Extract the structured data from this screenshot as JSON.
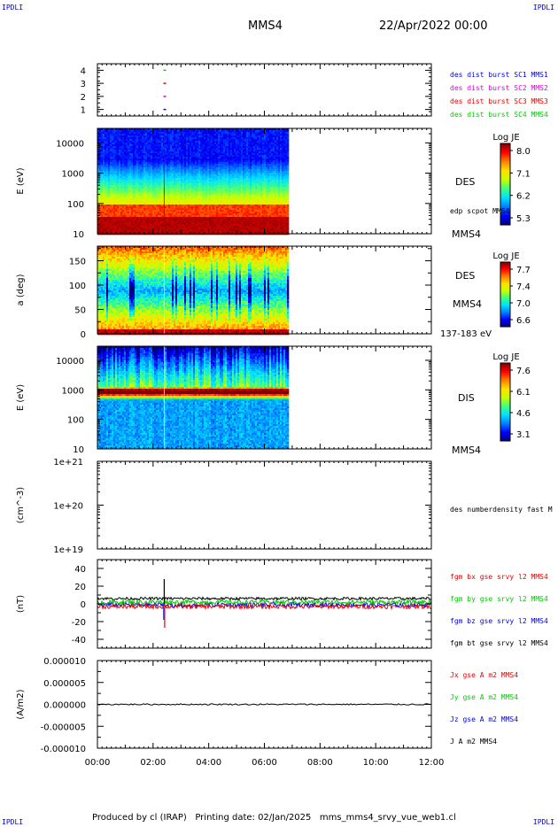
{
  "header": {
    "corner_left": "IPDLI",
    "corner_right": "IPDLI",
    "title": "MMS4",
    "date": "22/Apr/2022 00:00"
  },
  "footer": {
    "credit": "Produced by cl (IRAP)   Printing date: 02/Jan/2025   mms_mms4_srvy_vue_web1.cl",
    "corner_left": "IPDLI",
    "corner_right": "IPDLI"
  },
  "colors": {
    "red": "#ee0000",
    "green": "#00cc00",
    "blue": "#0000ee",
    "magenta": "#dd00dd",
    "black": "#000000",
    "cb_stops": [
      "#00007a",
      "#0000ff",
      "#0080ff",
      "#00e0ff",
      "#40ff80",
      "#c8ff00",
      "#ffe000",
      "#ff8000",
      "#ff0000",
      "#800000"
    ]
  },
  "chart_data": [
    {
      "type": "scatter",
      "name": "burst-panel",
      "ytick_labels": [
        "4",
        "3",
        "2",
        "1"
      ],
      "ylim": [
        0.5,
        4.5
      ],
      "legend": [
        {
          "label": "des dist burst SC1 MMS1",
          "color": "#0000ee"
        },
        {
          "label": "des dist burst SC2 MMS2",
          "color": "#dd00dd"
        },
        {
          "label": "des dist burst SC3 MMS3",
          "color": "#ee0000"
        },
        {
          "label": "des dist burst SC4 MMS4",
          "color": "#00cc00"
        }
      ],
      "points": [
        {
          "x": 2.42,
          "y": 4,
          "color": "#00cc00"
        },
        {
          "x": 2.42,
          "y": 3,
          "color": "#ee0000"
        },
        {
          "x": 2.42,
          "y": 2,
          "color": "#dd00dd"
        },
        {
          "x": 2.42,
          "y": 1,
          "color": "#0000ee"
        }
      ]
    },
    {
      "type": "heatmap",
      "name": "des-energy",
      "ylabel": "E (eV)",
      "yscale": "log",
      "ylim": [
        10,
        30000
      ],
      "ytick_labels": [
        "10000",
        "1000",
        "100",
        "10"
      ],
      "data_end_hour": 6.85,
      "side_labels": [
        "DES",
        "edp scpot MMS4",
        "MMS4"
      ],
      "colorbar": {
        "title": "Log JE",
        "ticks": [
          "8.0",
          "7.1",
          "6.2",
          "5.3"
        ]
      }
    },
    {
      "type": "heatmap",
      "name": "des-pitch",
      "ylabel": "a (deg)",
      "ylim": [
        0,
        180
      ],
      "ytick_labels": [
        "150",
        "100",
        "50",
        "0"
      ],
      "data_end_hour": 6.85,
      "side_labels": [
        "DES",
        "MMS4",
        "137-183 eV"
      ],
      "colorbar": {
        "title": "Log JE",
        "ticks": [
          "7.7",
          "7.4",
          "7.0",
          "6.6"
        ]
      }
    },
    {
      "type": "heatmap",
      "name": "dis-energy",
      "ylabel": "E (eV)",
      "yscale": "log",
      "ylim": [
        10,
        30000
      ],
      "ytick_labels": [
        "10000",
        "1000",
        "100",
        "10"
      ],
      "data_end_hour": 6.85,
      "side_labels": [
        "DIS",
        "MMS4"
      ],
      "colorbar": {
        "title": "Log JE",
        "ticks": [
          "7.6",
          "6.1",
          "4.6",
          "3.1"
        ]
      }
    },
    {
      "type": "line",
      "name": "density",
      "ylabel": "(cm^-3)",
      "yscale": "log",
      "ylim": [
        1e+19,
        1e+21
      ],
      "ytick_labels": [
        "1e+21",
        "1e+20",
        "1e+19"
      ],
      "legend": [
        {
          "label": "des numberdensity fast M",
          "color": "#000000"
        }
      ]
    },
    {
      "type": "line",
      "name": "magnetic-field",
      "ylabel": "(nT)",
      "ylim": [
        -50,
        50
      ],
      "ytick_labels": [
        "40",
        "20",
        "0",
        "-20",
        "-40"
      ],
      "legend": [
        {
          "label": "fgm bx gse srvy l2 MMS4",
          "color": "#ee0000"
        },
        {
          "label": "fgm by gse srvy l2 MMS4",
          "color": "#00cc00"
        },
        {
          "label": "fgm bz gse srvy l2 MMS4",
          "color": "#0000ee"
        },
        {
          "label": "fgm bt gse srvy l2 MMS4",
          "color": "#000000"
        }
      ],
      "series_mean": {
        "bx": -3,
        "by": 2,
        "bz": -1,
        "bt": 6
      },
      "spike": {
        "x": 2.4,
        "max": 28,
        "min": -27
      }
    },
    {
      "type": "line",
      "name": "current",
      "ylabel": "(A/m2)",
      "ylim": [
        -1e-05,
        1e-05
      ],
      "ytick_labels": [
        "0.000010",
        "0.000005",
        "0.000000",
        "-0.000005",
        "-0.000010"
      ],
      "legend": [
        {
          "label": "Jx gse A m2 MMS4",
          "color": "#ee0000"
        },
        {
          "label": "Jy gse A m2 MMS4",
          "color": "#00cc00"
        },
        {
          "label": "Jz gse A m2 MMS4",
          "color": "#0000ee"
        },
        {
          "label": "J A m2 MMS4",
          "color": "#000000"
        }
      ]
    }
  ],
  "xaxis": {
    "xlim": [
      0,
      12
    ],
    "tick_labels": [
      "00:00",
      "02:00",
      "04:00",
      "06:00",
      "08:00",
      "10:00",
      "12:00"
    ]
  }
}
